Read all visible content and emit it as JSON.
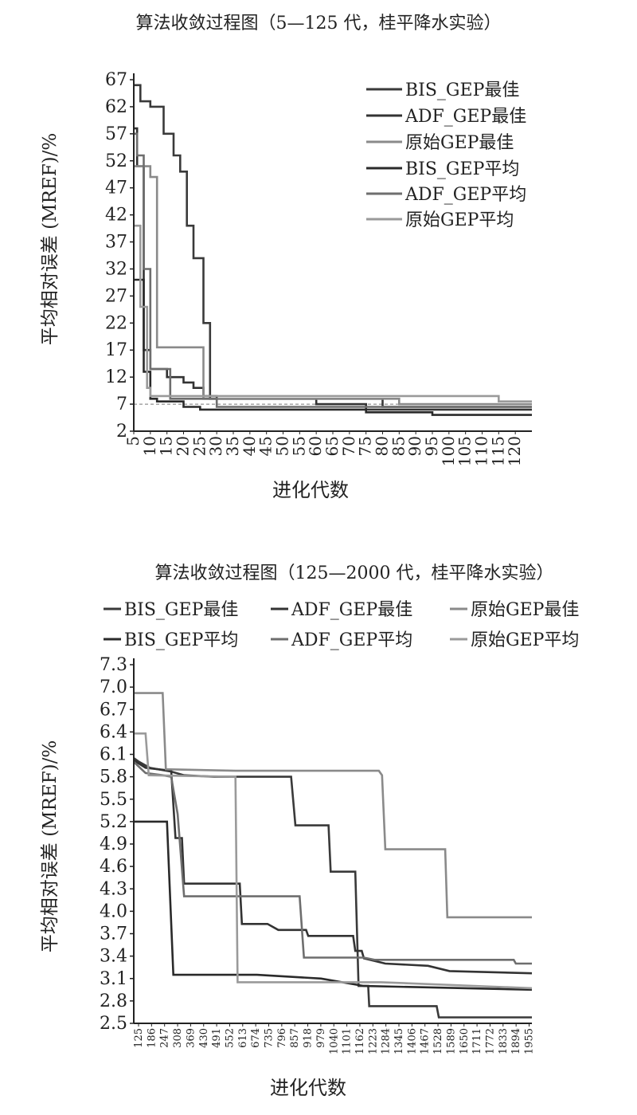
{
  "chart_data": [
    {
      "type": "line",
      "title": "算法收敛过程图（5—125 代，桂平降水实验）",
      "xlabel": "进化代数",
      "ylabel": "平均相对误差 (MREF)/%",
      "ylim": [
        2,
        67
      ],
      "xlim": [
        5,
        125
      ],
      "yticks": [
        "2",
        "7",
        "12",
        "17",
        "22",
        "27",
        "32",
        "37",
        "42",
        "47",
        "52",
        "57",
        "62",
        "67"
      ],
      "xticks": [
        "5",
        "10",
        "15",
        "20",
        "25",
        "30",
        "35",
        "40",
        "45",
        "50",
        "55",
        "60",
        "65",
        "70",
        "75",
        "80",
        "85",
        "90",
        "95",
        "100",
        "105",
        "110",
        "115",
        "120"
      ],
      "legend_position": "top-right",
      "reference_line": 7,
      "series": [
        {
          "name": "BIS_GEP最佳",
          "color": "#3a3a3a",
          "points": [
            [
              5,
              66
            ],
            [
              7,
              66
            ],
            [
              7,
              63
            ],
            [
              10,
              63
            ],
            [
              10,
              62
            ],
            [
              14,
              62
            ],
            [
              14,
              57
            ],
            [
              17,
              57
            ],
            [
              17,
              53
            ],
            [
              19,
              53
            ],
            [
              19,
              50
            ],
            [
              21,
              50
            ],
            [
              21,
              40
            ],
            [
              23,
              40
            ],
            [
              23,
              34
            ],
            [
              26,
              34
            ],
            [
              26,
              22
            ],
            [
              28,
              22
            ],
            [
              28,
              8
            ],
            [
              80,
              8
            ],
            [
              80,
              6.5
            ],
            [
              125,
              6.5
            ]
          ]
        },
        {
          "name": "ADF_GEP最佳",
          "color": "#333333",
          "points": [
            [
              5,
              58
            ],
            [
              6,
              58
            ],
            [
              6,
              51
            ],
            [
              8,
              51
            ],
            [
              8,
              17
            ],
            [
              10,
              17
            ],
            [
              10,
              13.5
            ],
            [
              15,
              13.5
            ],
            [
              15,
              12
            ],
            [
              20,
              12
            ],
            [
              20,
              11
            ],
            [
              23,
              11
            ],
            [
              23,
              10
            ],
            [
              26,
              10
            ],
            [
              26,
              8.5
            ],
            [
              30,
              8.5
            ],
            [
              30,
              8
            ],
            [
              60,
              8
            ],
            [
              60,
              7
            ],
            [
              75,
              7
            ],
            [
              75,
              6
            ],
            [
              125,
              6
            ]
          ]
        },
        {
          "name": "原始GEP最佳",
          "color": "#8a8a8a",
          "points": [
            [
              5,
              51
            ],
            [
              10,
              51
            ],
            [
              10,
              49
            ],
            [
              12,
              49
            ],
            [
              12,
              17.5
            ],
            [
              26,
              17.5
            ],
            [
              26,
              8
            ],
            [
              85,
              8
            ],
            [
              85,
              7
            ],
            [
              125,
              7
            ]
          ]
        },
        {
          "name": "BIS_GEP平均",
          "color": "#2a2a2a",
          "points": [
            [
              5,
              30
            ],
            [
              8,
              30
            ],
            [
              8,
              13
            ],
            [
              10,
              13
            ],
            [
              10,
              8
            ],
            [
              12,
              8
            ],
            [
              12,
              7.5
            ],
            [
              20,
              7.5
            ],
            [
              20,
              6.5
            ],
            [
              25,
              6.5
            ],
            [
              25,
              6
            ],
            [
              45,
              6
            ],
            [
              45,
              6
            ],
            [
              75,
              6
            ],
            [
              75,
              5.5
            ],
            [
              95,
              5.5
            ],
            [
              95,
              5
            ],
            [
              125,
              5
            ]
          ]
        },
        {
          "name": "ADF_GEP平均",
          "color": "#6e6e6e",
          "points": [
            [
              5,
              57
            ],
            [
              6,
              57
            ],
            [
              6,
              53
            ],
            [
              8,
              53
            ],
            [
              8,
              32
            ],
            [
              10,
              32
            ],
            [
              10,
              13.5
            ],
            [
              16,
              13.5
            ],
            [
              16,
              8
            ],
            [
              30,
              8
            ],
            [
              30,
              6.5
            ],
            [
              125,
              6.5
            ]
          ]
        },
        {
          "name": "原始GEP平均",
          "color": "#9a9a9a",
          "points": [
            [
              5,
              40
            ],
            [
              7,
              40
            ],
            [
              7,
              25
            ],
            [
              9,
              25
            ],
            [
              9,
              10
            ],
            [
              10,
              10
            ],
            [
              10,
              8.5
            ],
            [
              30,
              8.5
            ],
            [
              30,
              8.5
            ],
            [
              85,
              8.5
            ],
            [
              85,
              8.5
            ],
            [
              115,
              8.5
            ],
            [
              115,
              7.5
            ],
            [
              125,
              7.5
            ]
          ]
        }
      ]
    },
    {
      "type": "line",
      "title": "算法收敛过程图（125—2000 代，桂平降水实验）",
      "xlabel": "进化代数",
      "ylabel": "平均相对误差 (MREF)/%",
      "ylim": [
        2.5,
        7.3
      ],
      "xlim": [
        125,
        1985
      ],
      "yticks": [
        "2.5",
        "2.8",
        "3.1",
        "3.4",
        "3.7",
        "4.0",
        "4.3",
        "4.6",
        "4.9",
        "5.2",
        "5.5",
        "5.8",
        "6.1",
        "6.4",
        "6.7",
        "7.0",
        "7.3"
      ],
      "xticks": [
        "125",
        "186",
        "247",
        "308",
        "369",
        "430",
        "491",
        "552",
        "613",
        "674",
        "735",
        "796",
        "857",
        "918",
        "979",
        "1040",
        "1101",
        "1162",
        "1223",
        "1284",
        "1345",
        "1406",
        "1467",
        "1528",
        "1589",
        "1650",
        "1711",
        "1772",
        "1833",
        "1894",
        "1955"
      ],
      "legend_position": "top",
      "series": [
        {
          "name": "BIS_GEP最佳",
          "color": "#3a3a3a",
          "points": [
            [
              125,
              6.05
            ],
            [
              150,
              6.0
            ],
            [
              200,
              5.92
            ],
            [
              300,
              5.87
            ],
            [
              360,
              5.82
            ],
            [
              500,
              5.8
            ],
            [
              860,
              5.8
            ],
            [
              880,
              5.15
            ],
            [
              1035,
              5.15
            ],
            [
              1045,
              4.53
            ],
            [
              1160,
              4.53
            ],
            [
              1175,
              3.0
            ],
            [
              1220,
              3.0
            ],
            [
              1225,
              2.73
            ],
            [
              1540,
              2.73
            ],
            [
              1550,
              2.58
            ],
            [
              1985,
              2.58
            ]
          ]
        },
        {
          "name": "ADF_GEP最佳",
          "color": "#333333",
          "points": [
            [
              125,
              6.02
            ],
            [
              180,
              5.92
            ],
            [
              300,
              5.88
            ],
            [
              320,
              4.98
            ],
            [
              350,
              4.98
            ],
            [
              360,
              4.37
            ],
            [
              520,
              4.37
            ],
            [
              620,
              4.37
            ],
            [
              630,
              3.83
            ],
            [
              750,
              3.83
            ],
            [
              800,
              3.75
            ],
            [
              930,
              3.75
            ],
            [
              940,
              3.67
            ],
            [
              1150,
              3.67
            ],
            [
              1160,
              3.47
            ],
            [
              1190,
              3.47
            ],
            [
              1200,
              3.37
            ],
            [
              1300,
              3.3
            ],
            [
              1500,
              3.27
            ],
            [
              1600,
              3.2
            ],
            [
              1985,
              3.17
            ]
          ]
        },
        {
          "name": "原始GEP最佳",
          "color": "#8a8a8a",
          "points": [
            [
              125,
              6.92
            ],
            [
              260,
              6.92
            ],
            [
              275,
              5.9
            ],
            [
              600,
              5.88
            ],
            [
              1270,
              5.88
            ],
            [
              1285,
              5.82
            ],
            [
              1300,
              4.83
            ],
            [
              1580,
              4.83
            ],
            [
              1590,
              3.92
            ],
            [
              1985,
              3.92
            ]
          ]
        },
        {
          "name": "BIS_GEP平均",
          "color": "#2a2a2a",
          "points": [
            [
              125,
              5.2
            ],
            [
              280,
              5.2
            ],
            [
              310,
              3.15
            ],
            [
              340,
              3.15
            ],
            [
              700,
              3.15
            ],
            [
              1000,
              3.1
            ],
            [
              1200,
              3.0
            ],
            [
              1985,
              2.95
            ]
          ]
        },
        {
          "name": "ADF_GEP平均",
          "color": "#6e6e6e",
          "points": [
            [
              125,
              6.0
            ],
            [
              180,
              5.85
            ],
            [
              260,
              5.82
            ],
            [
              300,
              5.8
            ],
            [
              330,
              5.3
            ],
            [
              360,
              4.2
            ],
            [
              900,
              4.2
            ],
            [
              920,
              3.38
            ],
            [
              1200,
              3.38
            ],
            [
              1250,
              3.35
            ],
            [
              1900,
              3.35
            ],
            [
              1910,
              3.3
            ],
            [
              1985,
              3.3
            ]
          ]
        },
        {
          "name": "原始GEP平均",
          "color": "#9a9a9a",
          "points": [
            [
              125,
              6.38
            ],
            [
              180,
              6.38
            ],
            [
              195,
              5.82
            ],
            [
              600,
              5.8
            ],
            [
              610,
              3.05
            ],
            [
              1200,
              3.05
            ],
            [
              1280,
              3.05
            ],
            [
              1985,
              2.97
            ]
          ]
        }
      ]
    }
  ]
}
